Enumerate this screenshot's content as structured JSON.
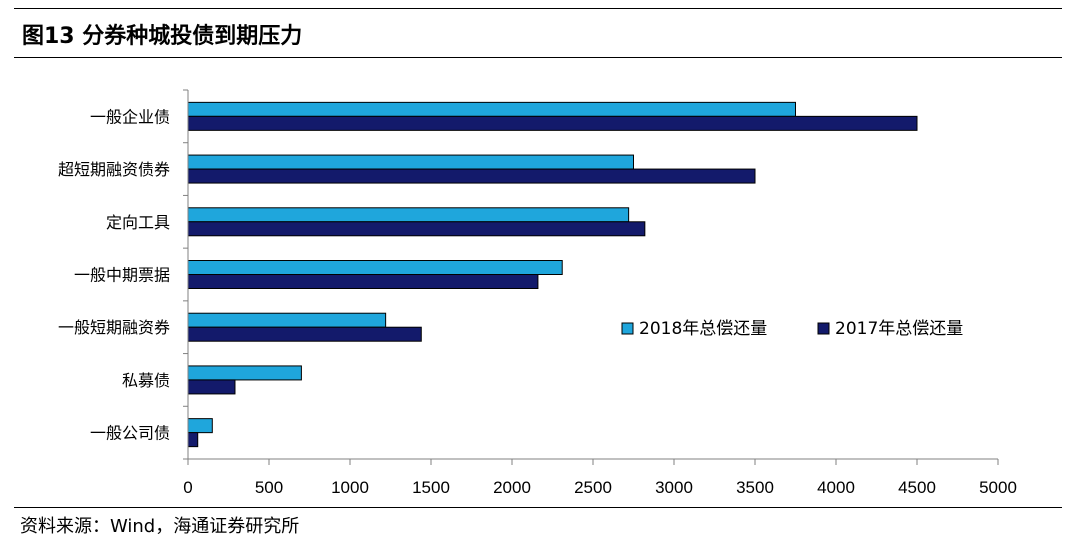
{
  "header": {
    "title": "图13 分券种城投债到期压力"
  },
  "footer": {
    "source": "资料来源：Wind，海通证券研究所"
  },
  "colors": {
    "series_2018": "#1FA6DC",
    "series_2017": "#131A6B",
    "axis": "#808080"
  },
  "chart_data": {
    "type": "bar",
    "orientation": "horizontal",
    "title": "图13 分券种城投债到期压力",
    "categories": [
      "一般企业债",
      "超短期融资债券",
      "定向工具",
      "一般中期票据",
      "一般短期融资券",
      "私募债",
      "一般公司债"
    ],
    "series": [
      {
        "name": "2018年总偿还量",
        "values": [
          3750,
          2750,
          2720,
          2310,
          1220,
          700,
          150
        ]
      },
      {
        "name": "2017年总偿还量",
        "values": [
          4500,
          3500,
          2820,
          2160,
          1440,
          290,
          60
        ]
      }
    ],
    "xlim": [
      0,
      5000
    ],
    "xticks": [
      0,
      500,
      1000,
      1500,
      2000,
      2500,
      3000,
      3500,
      4000,
      4500,
      5000
    ],
    "xlabel": "",
    "ylabel": "",
    "grid": false,
    "legend_position": "right-middle"
  }
}
